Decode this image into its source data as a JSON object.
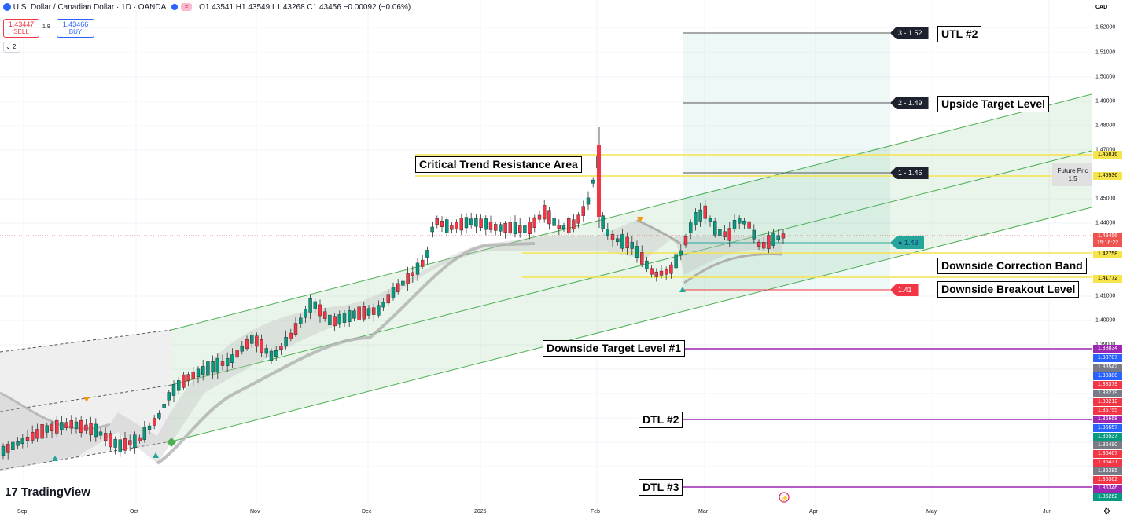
{
  "header": {
    "symbol": "U.S. Dollar / Canadian Dollar · 1D · OANDA",
    "ohlc": "O1.43541 H1.43549 L1.43268 C1.43456 −0.00092 (−0.06%)",
    "sell_price": "1.43447",
    "sell_label": "SELL",
    "spread": "1.9",
    "buy_price": "1.43466",
    "buy_label": "BUY",
    "collapse_count": "2"
  },
  "currency": "CAD",
  "time_axis": [
    "Sep",
    "Oct",
    "Nov",
    "Dec",
    "2025",
    "Feb",
    "Mar",
    "Apr",
    "May",
    "Jun"
  ],
  "price_axis": [
    "1.52000",
    "1.51000",
    "1.50000",
    "1.49000",
    "1.48000",
    "1.47000",
    "1.45000",
    "1.44000",
    "1.41000",
    "1.40000",
    "1.39000"
  ],
  "axis_badges": [
    {
      "text": "1.46816",
      "color": "#f5e44a",
      "fg": "#000"
    },
    {
      "text": "1.45936",
      "color": "#f5e44a",
      "fg": "#000"
    },
    {
      "text": "1.43456",
      "color": "#ef5350",
      "fg": "#fff"
    },
    {
      "text": "15:16:22",
      "color": "#ef5350",
      "fg": "#fff"
    },
    {
      "text": "1.42758",
      "color": "#f5e44a",
      "fg": "#000"
    },
    {
      "text": "1.41772",
      "color": "#f5e44a",
      "fg": "#000"
    },
    {
      "text": "1.38834",
      "color": "#9c27b0",
      "fg": "#fff"
    },
    {
      "text": "1.38787",
      "color": "#2962ff",
      "fg": "#fff"
    },
    {
      "text": "1.38542",
      "color": "#787b86",
      "fg": "#fff"
    },
    {
      "text": "1.38380",
      "color": "#2962ff",
      "fg": "#fff"
    },
    {
      "text": "1.38379",
      "color": "#f23645",
      "fg": "#fff"
    },
    {
      "text": "1.38279",
      "color": "#787b86",
      "fg": "#fff"
    },
    {
      "text": "1.38212",
      "color": "#f23645",
      "fg": "#fff"
    },
    {
      "text": "1.36755",
      "color": "#f23645",
      "fg": "#fff"
    },
    {
      "text": "1.36668",
      "color": "#9c27b0",
      "fg": "#fff"
    },
    {
      "text": "1.36657",
      "color": "#2962ff",
      "fg": "#fff"
    },
    {
      "text": "1.36537",
      "color": "#089981",
      "fg": "#fff"
    },
    {
      "text": "1.36480",
      "color": "#787b86",
      "fg": "#fff"
    },
    {
      "text": "1.36467",
      "color": "#f23645",
      "fg": "#fff"
    },
    {
      "text": "1.36431",
      "color": "#f23645",
      "fg": "#fff"
    },
    {
      "text": "1.36385",
      "color": "#787b86",
      "fg": "#fff"
    },
    {
      "text": "1.36362",
      "color": "#f23645",
      "fg": "#fff"
    },
    {
      "text": "1.36346",
      "color": "#9c27b0",
      "fg": "#fff"
    },
    {
      "text": "1.36262",
      "color": "#089981",
      "fg": "#fff"
    }
  ],
  "annotations": {
    "utl2": "UTL #2",
    "upside": "Upside Target Level",
    "critical": "Critical Trend Resistance Area",
    "correction": "Downside Correction Band",
    "breakout": "Downside Breakout Level",
    "dtl1": "Downside Target Level #1",
    "dtl2": "DTL #2",
    "dtl3": "DTL #3"
  },
  "tags": {
    "t3": "3 - 1.52",
    "t2": "2 - 1.49",
    "t1": "1 - 1.46",
    "tc": "● 1.43",
    "tl": "1.41"
  },
  "future_price": {
    "label": "Future Pric",
    "value": "1.5"
  },
  "brand": "TradingView",
  "colors": {
    "up": "#089981",
    "down": "#f23645",
    "level": "#f5e44a",
    "target": "#9c27b0",
    "channel": "#4caf50"
  }
}
